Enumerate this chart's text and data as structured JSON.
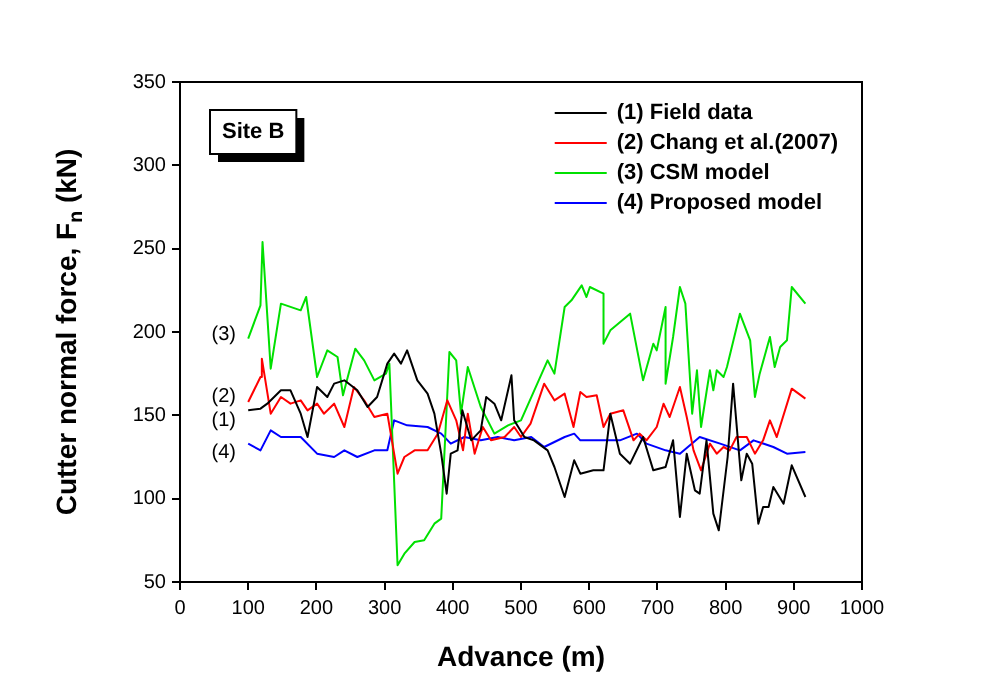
{
  "chart_data": {
    "type": "line",
    "xlabel": "Advance (m)",
    "ylabel": "Cutter normal force, F$_{n}$ (kN)",
    "xlim": [
      0,
      1000
    ],
    "xticks": [
      0,
      100,
      200,
      300,
      400,
      500,
      600,
      700,
      800,
      900,
      1000
    ],
    "ylim": [
      50,
      350
    ],
    "yticks": [
      50,
      100,
      150,
      200,
      250,
      300,
      350
    ],
    "grid": false,
    "legend": "top right",
    "marker": "none",
    "line_style": "solid",
    "annotations": [
      "Site B",
      "(3)",
      "(2)",
      "(1)",
      "(4)"
    ],
    "series": [
      {
        "name": "(1) Field data",
        "color": "#000000",
        "x": [
          100,
          118,
          128,
          138,
          148,
          162,
          177,
          187,
          201,
          216,
          226,
          241,
          260,
          275,
          289,
          304,
          314,
          324,
          333,
          348,
          363,
          373,
          383,
          391,
          397,
          407,
          414,
          427,
          441,
          449,
          461,
          471,
          486,
          490,
          505,
          519,
          539,
          549,
          564,
          578,
          587,
          606,
          621,
          631,
          645,
          660,
          679,
          694,
          712,
          723,
          733,
          743,
          755,
          762,
          772,
          782,
          790,
          803,
          811,
          823,
          831,
          839,
          848,
          855,
          863,
          870,
          885,
          897,
          917
        ],
        "values": [
          153,
          154,
          157,
          161,
          165,
          165,
          151,
          137,
          167,
          161,
          169,
          171,
          165,
          155,
          161,
          181,
          187,
          181,
          189,
          171,
          163,
          151,
          127,
          103,
          127,
          129,
          153,
          135,
          141,
          161,
          157,
          147,
          174,
          147,
          137,
          135,
          129,
          119,
          101,
          123,
          115,
          117,
          117,
          151,
          127,
          121,
          137,
          117,
          119,
          135,
          89,
          127,
          105,
          103,
          135,
          91,
          81,
          125,
          169,
          111,
          127,
          121,
          85,
          95,
          95,
          107,
          97,
          120,
          101
        ]
      },
      {
        "name": "(2) Chang et al.(2007)",
        "color": "#ff0000",
        "x": [
          100,
          118,
          120,
          133,
          148,
          162,
          177,
          187,
          201,
          211,
          226,
          241,
          255,
          270,
          285,
          304,
          319,
          329,
          344,
          363,
          378,
          392,
          405,
          415,
          422,
          432,
          444,
          456,
          476,
          490,
          500,
          514,
          534,
          549,
          564,
          577,
          587,
          596,
          611,
          621,
          631,
          650,
          665,
          674,
          684,
          699,
          709,
          718,
          733,
          743,
          753,
          764,
          777,
          787,
          797,
          806,
          816,
          831,
          843,
          855,
          865,
          875,
          897,
          917
        ],
        "values": [
          158,
          173,
          184,
          151,
          161,
          157,
          159,
          153,
          157,
          151,
          157,
          143,
          167,
          159,
          149,
          151,
          115,
          125,
          129,
          129,
          139,
          159,
          147,
          129,
          151,
          127,
          143,
          135,
          137,
          143,
          137,
          145,
          169,
          159,
          163,
          143,
          164,
          161,
          162,
          143,
          151,
          153,
          135,
          139,
          135,
          143,
          157,
          149,
          167,
          149,
          129,
          117,
          133,
          127,
          131,
          129,
          137,
          137,
          127,
          135,
          147,
          137,
          166,
          160
        ]
      },
      {
        "name": "(3) CSM model",
        "color": "#00e000",
        "x": [
          100,
          118,
          121,
          133,
          148,
          177,
          185,
          201,
          216,
          231,
          239,
          246,
          257,
          270,
          285,
          302,
          307,
          319,
          329,
          344,
          358,
          373,
          383,
          395,
          405,
          412,
          422,
          441,
          461,
          481,
          500,
          539,
          549,
          564,
          574,
          589,
          596,
          601,
          621,
          621,
          631,
          660,
          679,
          694,
          699,
          712,
          712,
          723,
          733,
          741,
          751,
          758,
          764,
          772,
          777,
          782,
          787,
          797,
          802,
          821,
          836,
          843,
          850,
          865,
          872,
          880,
          890,
          897,
          917
        ],
        "values": [
          196,
          216,
          254,
          178,
          217,
          213,
          221,
          173,
          189,
          185,
          162,
          173,
          190,
          183,
          171,
          175,
          181,
          60,
          67,
          74,
          75,
          85,
          88,
          188,
          183,
          151,
          179,
          155,
          139,
          144,
          147,
          183,
          175,
          215,
          219,
          228,
          221,
          227,
          223,
          193,
          201,
          211,
          171,
          193,
          189,
          215,
          169,
          197,
          227,
          217,
          151,
          177,
          143,
          164,
          177,
          165,
          177,
          173,
          179,
          211,
          195,
          161,
          175,
          197,
          179,
          191,
          195,
          227,
          217
        ]
      },
      {
        "name": "(4) Proposed model",
        "color": "#0000ff",
        "x": [
          100,
          118,
          133,
          148,
          177,
          201,
          226,
          241,
          260,
          285,
          304,
          314,
          333,
          363,
          383,
          397,
          417,
          441,
          466,
          490,
          515,
          534,
          564,
          578,
          587,
          616,
          645,
          670,
          684,
          712,
          733,
          762,
          792,
          821,
          841,
          870,
          890,
          917
        ],
        "values": [
          133,
          129,
          141,
          137,
          137,
          127,
          125,
          129,
          125,
          129,
          129,
          147,
          144,
          143,
          139,
          133,
          137,
          135,
          137,
          135,
          137,
          131,
          137,
          139,
          135,
          135,
          135,
          139,
          133,
          129,
          127,
          137,
          133,
          129,
          135,
          131,
          127,
          128
        ]
      }
    ]
  }
}
